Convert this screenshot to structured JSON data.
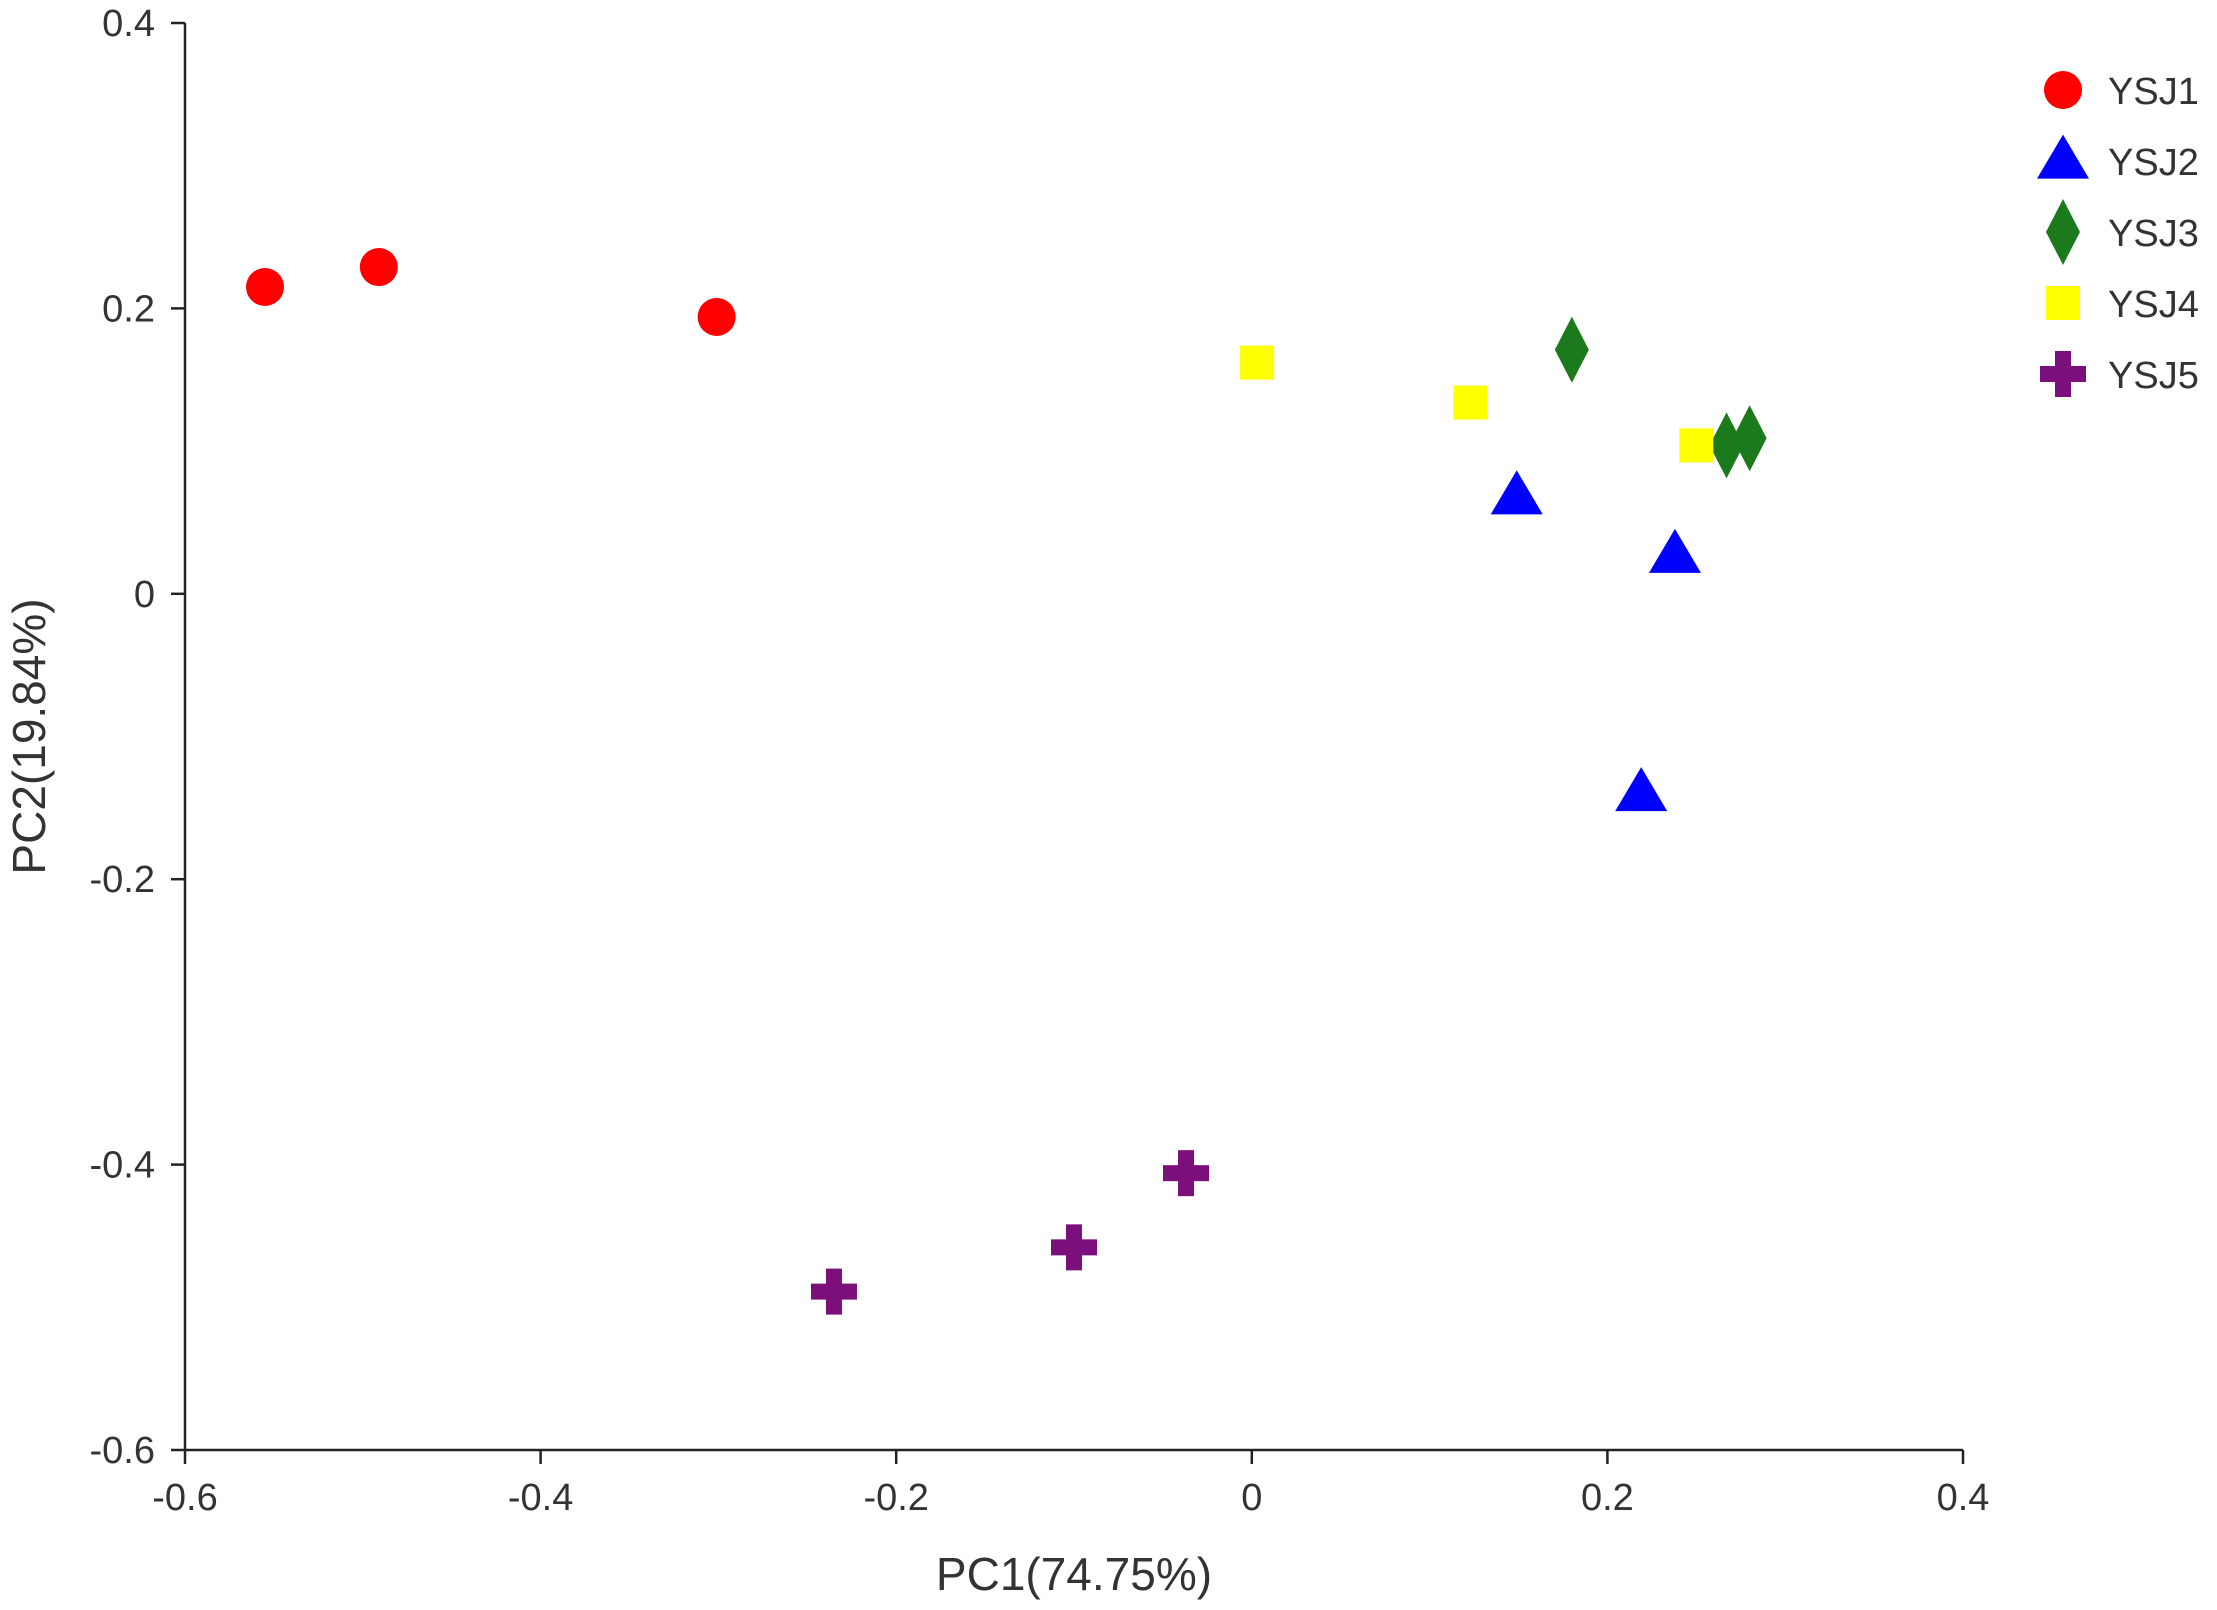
{
  "chart_data": {
    "type": "scatter",
    "title": "",
    "xlabel": "PC1(74.75%)",
    "ylabel": "PC2(19.84%)",
    "xlim": [
      -0.6,
      0.4
    ],
    "ylim": [
      -0.6,
      0.4
    ],
    "x_ticks": [
      -0.6,
      -0.4,
      -0.2,
      0,
      0.2,
      0.4
    ],
    "x_tick_labels": [
      "-0.6",
      "-0.4",
      "-0.2",
      "0",
      "0.2",
      "0.4"
    ],
    "y_ticks": [
      -0.6,
      -0.4,
      -0.2,
      0,
      0.2,
      0.4
    ],
    "y_tick_labels": [
      "-0.6",
      "-0.4",
      "-0.2",
      "0",
      "0.2",
      "0.4"
    ],
    "grid": false,
    "legend_position": "top-right",
    "series": [
      {
        "name": "YSJ1",
        "marker": "circle",
        "color": "#ff0000",
        "points": [
          [
            -0.555,
            0.215
          ],
          [
            -0.491,
            0.229
          ],
          [
            -0.301,
            0.194
          ]
        ]
      },
      {
        "name": "YSJ2",
        "marker": "triangle",
        "color": "#0000ff",
        "points": [
          [
            0.149,
            0.068
          ],
          [
            0.238,
            0.027
          ],
          [
            0.219,
            -0.14
          ]
        ]
      },
      {
        "name": "YSJ3",
        "marker": "diamond",
        "color": "#1b7a1b",
        "points": [
          [
            0.18,
            0.171
          ],
          [
            0.267,
            0.104
          ],
          [
            0.28,
            0.109
          ]
        ]
      },
      {
        "name": "YSJ4",
        "marker": "square",
        "color": "#ffff00",
        "points": [
          [
            0.003,
            0.162
          ],
          [
            0.123,
            0.134
          ],
          [
            0.25,
            0.104
          ]
        ]
      },
      {
        "name": "YSJ5",
        "marker": "cross",
        "color": "#7b0f7b",
        "points": [
          [
            -0.235,
            -0.489
          ],
          [
            -0.1,
            -0.458
          ],
          [
            -0.037,
            -0.406
          ]
        ]
      }
    ]
  }
}
